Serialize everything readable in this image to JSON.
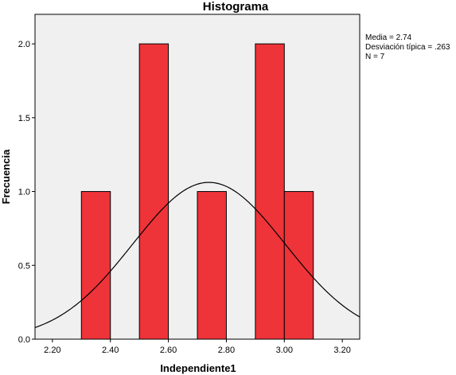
{
  "chart_data": {
    "type": "bar",
    "title": "Histograma",
    "xlabel": "Independiente1",
    "ylabel": "Frecuencia",
    "xlim": [
      2.14,
      3.26
    ],
    "ylim": [
      0,
      2.2
    ],
    "x_ticks": [
      "2.20",
      "2.40",
      "2.60",
      "2.80",
      "3.00",
      "3.20"
    ],
    "y_ticks": [
      "0.0",
      "0.5",
      "1.0",
      "1.5",
      "2.0"
    ],
    "bins": [
      {
        "start": 2.3,
        "end": 2.4,
        "count": 1
      },
      {
        "start": 2.5,
        "end": 2.6,
        "count": 2
      },
      {
        "start": 2.7,
        "end": 2.8,
        "count": 1
      },
      {
        "start": 2.9,
        "end": 3.0,
        "count": 2
      },
      {
        "start": 3.0,
        "end": 3.1,
        "count": 1
      }
    ],
    "normal_curve": {
      "mean": 2.74,
      "sd": 0.263,
      "n": 7,
      "bin_width": 0.1
    },
    "bar_color": "#ee3439",
    "plot_background": "#f0f0f0",
    "stats": [
      "Media = 2.74",
      "Desviación típica = .263",
      "N = 7"
    ]
  }
}
